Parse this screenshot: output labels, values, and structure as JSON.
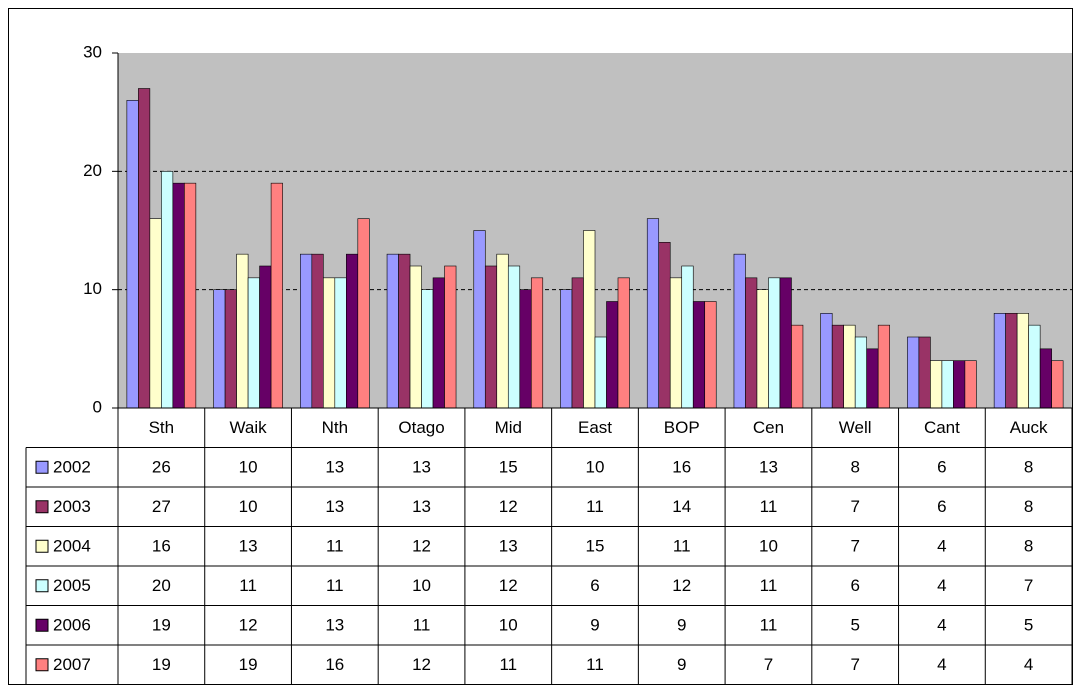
{
  "chart_data": {
    "type": "bar",
    "categories": [
      "Sth",
      "Waik",
      "Nth",
      "Otago",
      "Mid",
      "East",
      "BOP",
      "Cen",
      "Well",
      "Cant",
      "Auck"
    ],
    "series": [
      {
        "name": "2002",
        "color": "#9999ff",
        "values": [
          26,
          10,
          13,
          13,
          15,
          10,
          16,
          13,
          8,
          6,
          8
        ]
      },
      {
        "name": "2003",
        "color": "#993366",
        "values": [
          27,
          10,
          13,
          13,
          12,
          11,
          14,
          11,
          7,
          6,
          8
        ]
      },
      {
        "name": "2004",
        "color": "#ffffcc",
        "values": [
          16,
          13,
          11,
          12,
          13,
          15,
          11,
          10,
          7,
          4,
          8
        ]
      },
      {
        "name": "2005",
        "color": "#ccffff",
        "values": [
          20,
          11,
          11,
          10,
          12,
          6,
          12,
          11,
          6,
          4,
          7
        ]
      },
      {
        "name": "2006",
        "color": "#660066",
        "values": [
          19,
          12,
          13,
          11,
          10,
          9,
          9,
          11,
          5,
          4,
          5
        ]
      },
      {
        "name": "2007",
        "color": "#ff8080",
        "values": [
          19,
          19,
          16,
          12,
          11,
          11,
          9,
          7,
          7,
          4,
          4
        ]
      }
    ],
    "ylim": [
      0,
      30
    ],
    "yticks": [
      0,
      10,
      20,
      30
    ],
    "grid": true,
    "plot_background": "#c0c0c0"
  }
}
